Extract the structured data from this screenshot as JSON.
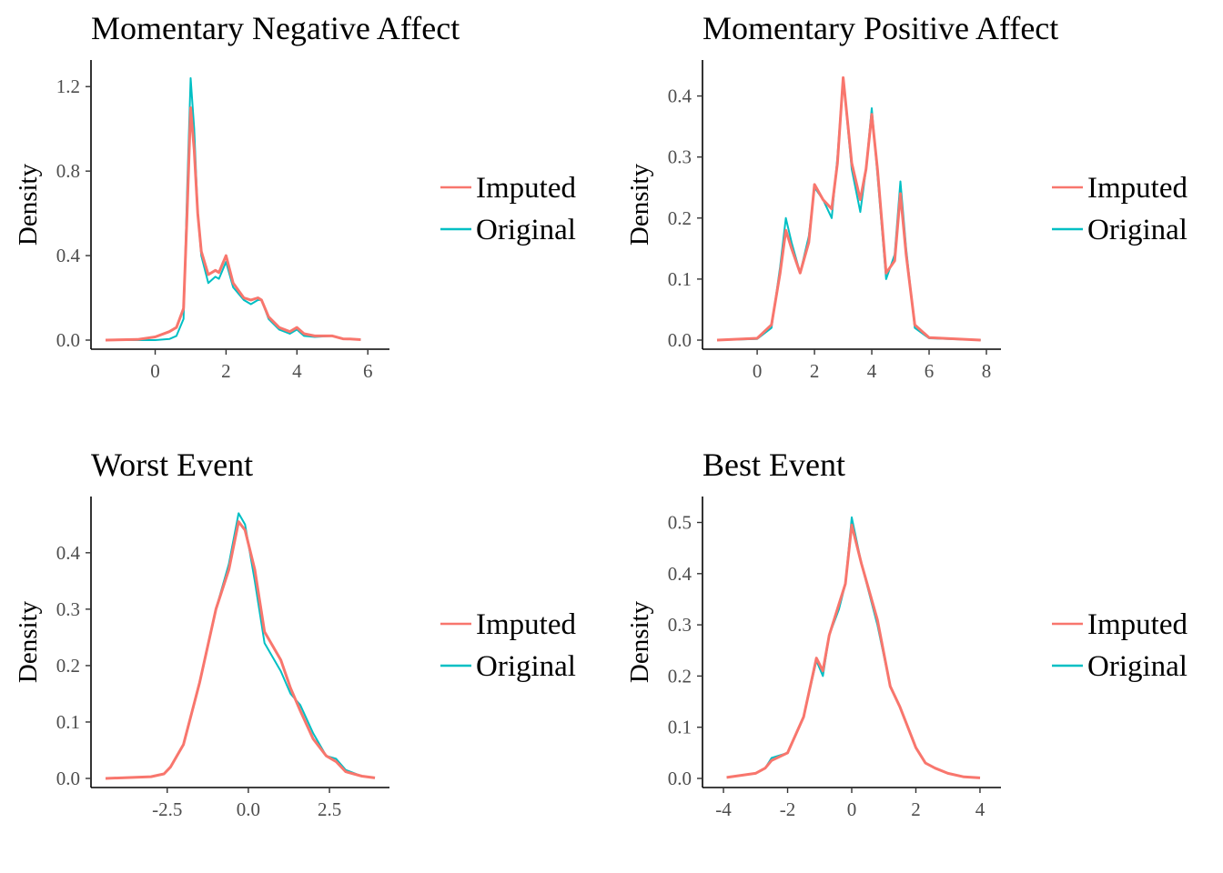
{
  "colors": {
    "Imputed": "#F8766D",
    "Original": "#00BFC4",
    "axis": "#000000",
    "tick_text": "#4d4d4d"
  },
  "legend": {
    "items": [
      "Imputed",
      "Original"
    ]
  },
  "chart_data": [
    {
      "type": "line",
      "title": "Momentary Negative Affect",
      "xlabel": "",
      "ylabel": "Density",
      "xlim": [
        -1.4,
        6.2
      ],
      "ylim": [
        0,
        1.3
      ],
      "xticks": [
        0,
        2,
        4,
        6
      ],
      "xtick_labels": [
        "0",
        "2",
        "4",
        "6"
      ],
      "yticks": [
        0,
        0.4,
        0.8,
        1.2
      ],
      "ytick_labels": [
        "0.0",
        "0.4",
        "0.8",
        "1.2"
      ],
      "legend_position": "right",
      "series": [
        {
          "name": "Original",
          "x": [
            -1.4,
            0,
            0.4,
            0.6,
            0.8,
            0.9,
            1,
            1.1,
            1.2,
            1.3,
            1.5,
            1.7,
            1.8,
            2,
            2.2,
            2.5,
            2.7,
            2.9,
            3,
            3.2,
            3.5,
            3.8,
            4,
            4.2,
            4.5,
            5,
            5.3,
            5.5,
            5.8
          ],
          "y": [
            0,
            0,
            0.005,
            0.02,
            0.1,
            0.7,
            1.24,
            1.0,
            0.6,
            0.4,
            0.27,
            0.3,
            0.29,
            0.37,
            0.25,
            0.19,
            0.17,
            0.19,
            0.19,
            0.1,
            0.05,
            0.03,
            0.05,
            0.02,
            0.015,
            0.02,
            0.005,
            0.005,
            0.002
          ]
        },
        {
          "name": "Imputed",
          "x": [
            -1.4,
            -0.5,
            0,
            0.4,
            0.6,
            0.8,
            0.9,
            1,
            1.1,
            1.2,
            1.3,
            1.5,
            1.7,
            1.8,
            2,
            2.2,
            2.5,
            2.7,
            2.9,
            3,
            3.2,
            3.5,
            3.8,
            4,
            4.2,
            4.5,
            5,
            5.3,
            5.5,
            5.8
          ],
          "y": [
            0,
            0.003,
            0.015,
            0.04,
            0.06,
            0.15,
            0.6,
            1.1,
            0.9,
            0.6,
            0.42,
            0.31,
            0.33,
            0.32,
            0.4,
            0.27,
            0.2,
            0.19,
            0.2,
            0.19,
            0.11,
            0.06,
            0.04,
            0.06,
            0.03,
            0.02,
            0.02,
            0.006,
            0.005,
            0.002
          ]
        }
      ]
    },
    {
      "type": "line",
      "title": "Momentary Positive Affect",
      "xlabel": "",
      "ylabel": "Density",
      "xlim": [
        -1.4,
        8.0
      ],
      "ylim": [
        0,
        0.45
      ],
      "xticks": [
        0,
        2,
        4,
        6,
        8
      ],
      "xtick_labels": [
        "0",
        "2",
        "4",
        "6",
        "8"
      ],
      "yticks": [
        0,
        0.1,
        0.2,
        0.3,
        0.4
      ],
      "ytick_labels": [
        "0.0",
        "0.1",
        "0.2",
        "0.3",
        "0.4"
      ],
      "legend_position": "right",
      "series": [
        {
          "name": "Original",
          "x": [
            -1.4,
            0,
            0.5,
            0.8,
            1,
            1.2,
            1.5,
            1.8,
            2,
            2.3,
            2.6,
            2.8,
            3,
            3.3,
            3.6,
            3.8,
            4,
            4.2,
            4.5,
            4.8,
            5,
            5.2,
            5.5,
            6,
            7.8
          ],
          "y": [
            0,
            0.002,
            0.02,
            0.12,
            0.2,
            0.16,
            0.11,
            0.17,
            0.25,
            0.23,
            0.2,
            0.3,
            0.43,
            0.28,
            0.21,
            0.28,
            0.38,
            0.27,
            0.1,
            0.14,
            0.26,
            0.15,
            0.02,
            0.003,
            0
          ]
        },
        {
          "name": "Imputed",
          "x": [
            -1.4,
            0,
            0.5,
            0.8,
            1,
            1.2,
            1.5,
            1.8,
            2,
            2.3,
            2.6,
            2.8,
            3,
            3.3,
            3.6,
            3.8,
            4,
            4.2,
            4.5,
            4.8,
            5,
            5.2,
            5.5,
            6,
            7.8
          ],
          "y": [
            0,
            0.003,
            0.025,
            0.11,
            0.18,
            0.15,
            0.11,
            0.16,
            0.255,
            0.23,
            0.215,
            0.29,
            0.43,
            0.29,
            0.23,
            0.28,
            0.37,
            0.28,
            0.11,
            0.13,
            0.24,
            0.14,
            0.025,
            0.004,
            0
          ]
        }
      ]
    },
    {
      "type": "line",
      "title": "Worst Event",
      "xlabel": "",
      "ylabel": "Density",
      "xlim": [
        -4.4,
        3.9
      ],
      "ylim": [
        0,
        0.49
      ],
      "xticks": [
        -2.5,
        0,
        2.5
      ],
      "xtick_labels": [
        "-2.5",
        "0.0",
        "2.5"
      ],
      "yticks": [
        0,
        0.1,
        0.2,
        0.3,
        0.4
      ],
      "ytick_labels": [
        "0.0",
        "0.1",
        "0.2",
        "0.3",
        "0.4"
      ],
      "legend_position": "right",
      "series": [
        {
          "name": "Original",
          "x": [
            -4.4,
            -3,
            -2.6,
            -2.4,
            -2,
            -1.5,
            -1,
            -0.6,
            -0.3,
            -0.1,
            0.2,
            0.5,
            1,
            1.3,
            1.6,
            2,
            2.4,
            2.7,
            3,
            3.5,
            3.9
          ],
          "y": [
            0,
            0.003,
            0.008,
            0.02,
            0.06,
            0.17,
            0.3,
            0.38,
            0.47,
            0.45,
            0.35,
            0.24,
            0.19,
            0.15,
            0.13,
            0.08,
            0.04,
            0.035,
            0.015,
            0.004,
            0.001
          ]
        },
        {
          "name": "Imputed",
          "x": [
            -4.4,
            -3,
            -2.6,
            -2.4,
            -2,
            -1.5,
            -1,
            -0.6,
            -0.3,
            -0.1,
            0.2,
            0.5,
            1,
            1.3,
            1.6,
            2,
            2.4,
            2.7,
            3,
            3.5,
            3.9
          ],
          "y": [
            0,
            0.003,
            0.008,
            0.02,
            0.06,
            0.17,
            0.3,
            0.37,
            0.455,
            0.44,
            0.37,
            0.26,
            0.21,
            0.16,
            0.12,
            0.07,
            0.04,
            0.03,
            0.012,
            0.004,
            0.001
          ]
        }
      ]
    },
    {
      "type": "line",
      "title": "Best Event",
      "xlabel": "",
      "ylabel": "Density",
      "xlim": [
        -4.2,
        4.2
      ],
      "ylim": [
        0,
        0.54
      ],
      "xticks": [
        -4,
        -2,
        0,
        2,
        4
      ],
      "xtick_labels": [
        "-4",
        "-2",
        "0",
        "2",
        "4"
      ],
      "yticks": [
        0,
        0.1,
        0.2,
        0.3,
        0.4,
        0.5
      ],
      "ytick_labels": [
        "0.0",
        "0.1",
        "0.2",
        "0.3",
        "0.4",
        "0.5"
      ],
      "legend_position": "right",
      "series": [
        {
          "name": "Original",
          "x": [
            -3.9,
            -3,
            -2.7,
            -2.5,
            -2,
            -1.5,
            -1.1,
            -0.9,
            -0.7,
            -0.4,
            -0.2,
            0,
            0.3,
            0.8,
            1.2,
            1.5,
            2,
            2.3,
            2.6,
            3,
            3.5,
            4
          ],
          "y": [
            0.002,
            0.01,
            0.02,
            0.04,
            0.05,
            0.12,
            0.23,
            0.2,
            0.28,
            0.33,
            0.38,
            0.51,
            0.42,
            0.3,
            0.18,
            0.14,
            0.06,
            0.03,
            0.02,
            0.01,
            0.003,
            0.001
          ]
        },
        {
          "name": "Imputed",
          "x": [
            -3.9,
            -3,
            -2.7,
            -2.5,
            -2,
            -1.5,
            -1.1,
            -0.9,
            -0.7,
            -0.4,
            -0.2,
            0,
            0.3,
            0.8,
            1.2,
            1.5,
            2,
            2.3,
            2.6,
            3,
            3.5,
            4
          ],
          "y": [
            0.002,
            0.01,
            0.02,
            0.035,
            0.05,
            0.12,
            0.235,
            0.21,
            0.28,
            0.34,
            0.38,
            0.495,
            0.42,
            0.31,
            0.18,
            0.14,
            0.06,
            0.03,
            0.02,
            0.01,
            0.003,
            0.001
          ]
        }
      ]
    }
  ]
}
